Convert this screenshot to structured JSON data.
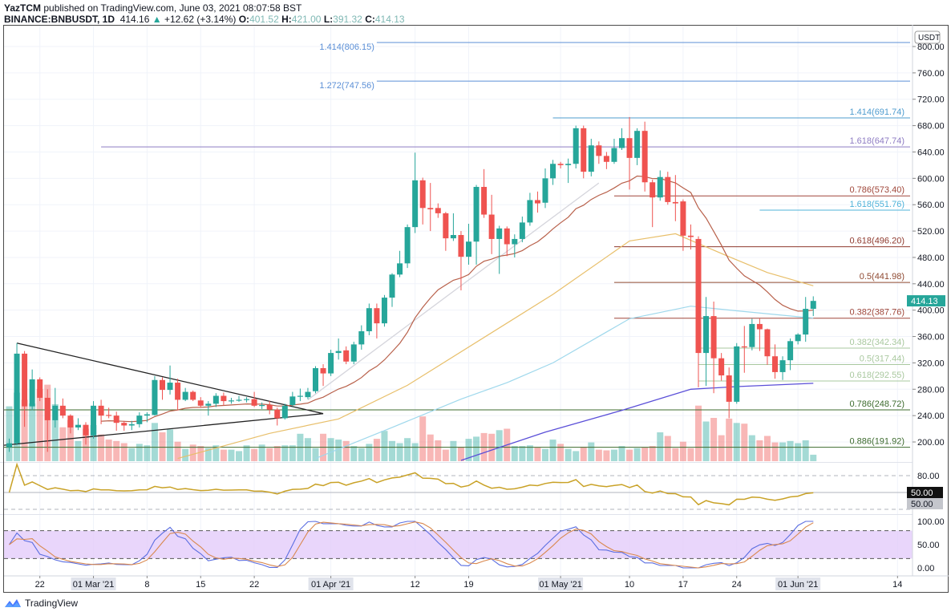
{
  "header": {
    "author": "YazTCM",
    "published": "published on TradingView.com, June 03, 2021 08:07:58 BST",
    "symbol": "BINANCE:BNBUSDT, 1D",
    "last": "414.16",
    "change": "+12.62 (+3.14%)",
    "o_label": "O:",
    "o": "401.52",
    "h_label": "H:",
    "h": "421.00",
    "l_label": "L:",
    "l": "391.32",
    "c_label": "C:",
    "c": "414.13"
  },
  "footer": {
    "brand": "TradingView"
  },
  "colors": {
    "up": "#26a69a",
    "down": "#ef5350",
    "ema20": "#b8604a",
    "ma50": "#e8bf6a",
    "ma100": "#9fd8ec",
    "ma200": "#5a4fd8",
    "rsi": "#c9a227",
    "stoch_k": "#5b6ee1",
    "stoch_d": "#d9884e",
    "band": "#e4ccfa"
  },
  "chart_data": {
    "type": "candlestick",
    "title": "BINANCE:BNBUSDT, 1D",
    "currency": "USDT",
    "start_date": "2021-02-18",
    "ylim": [
      180,
      830
    ],
    "y_ticks": [
      "800.00",
      "760.00",
      "720.00",
      "680.00",
      "640.00",
      "600.00",
      "560.00",
      "520.00",
      "480.00",
      "440.00",
      "400.00",
      "360.00",
      "320.00",
      "280.00",
      "240.00",
      "200.00"
    ],
    "last_price": "414.13",
    "x_ticks": [
      {
        "label": "22",
        "index": 4,
        "boxed": false
      },
      {
        "label": "01 Mar '21",
        "index": 11,
        "boxed": true
      },
      {
        "label": "8",
        "index": 18,
        "boxed": false
      },
      {
        "label": "15",
        "index": 25,
        "boxed": false
      },
      {
        "label": "22",
        "index": 32,
        "boxed": false
      },
      {
        "label": "01 Apr '21",
        "index": 42,
        "boxed": true
      },
      {
        "label": "12",
        "index": 53,
        "boxed": false
      },
      {
        "label": "19",
        "index": 60,
        "boxed": false
      },
      {
        "label": "01 May '21",
        "index": 72,
        "boxed": true
      },
      {
        "label": "10",
        "index": 81,
        "boxed": false
      },
      {
        "label": "17",
        "index": 88,
        "boxed": false
      },
      {
        "label": "24",
        "index": 95,
        "boxed": false
      },
      {
        "label": "01 Jun '21",
        "index": 103,
        "boxed": true
      },
      {
        "label": "14",
        "index": 116,
        "boxed": false
      }
    ],
    "ohlc": [
      [
        192,
        205,
        185,
        198
      ],
      [
        198,
        350,
        195,
        334
      ],
      [
        334,
        338,
        223,
        254
      ],
      [
        254,
        310,
        248,
        295
      ],
      [
        295,
        298,
        262,
        267
      ],
      [
        267,
        280,
        185,
        233
      ],
      [
        233,
        282,
        222,
        255
      ],
      [
        255,
        266,
        236,
        240
      ],
      [
        240,
        242,
        213,
        222
      ],
      [
        222,
        236,
        218,
        226
      ],
      [
        226,
        230,
        196,
        210
      ],
      [
        210,
        262,
        205,
        255
      ],
      [
        255,
        264,
        227,
        240
      ],
      [
        241,
        252,
        236,
        240
      ],
      [
        240,
        246,
        217,
        229
      ],
      [
        229,
        232,
        217,
        225
      ],
      [
        225,
        232,
        218,
        227
      ],
      [
        227,
        245,
        222,
        240
      ],
      [
        240,
        245,
        230,
        242
      ],
      [
        241,
        300,
        240,
        294
      ],
      [
        294,
        298,
        264,
        279
      ],
      [
        279,
        316,
        272,
        290
      ],
      [
        290,
        296,
        248,
        264
      ],
      [
        264,
        282,
        262,
        276
      ],
      [
        276,
        278,
        262,
        264
      ],
      [
        263,
        268,
        252,
        255
      ],
      [
        255,
        262,
        240,
        258
      ],
      [
        258,
        274,
        253,
        270
      ],
      [
        270,
        275,
        255,
        262
      ],
      [
        262,
        267,
        258,
        263
      ],
      [
        263,
        270,
        261,
        264
      ],
      [
        264,
        268,
        260,
        265
      ],
      [
        265,
        276,
        253,
        255
      ],
      [
        255,
        260,
        250,
        256
      ],
      [
        256,
        262,
        242,
        249
      ],
      [
        249,
        252,
        225,
        236
      ],
      [
        236,
        258,
        234,
        255
      ],
      [
        256,
        276,
        254,
        269
      ],
      [
        269,
        281,
        262,
        270
      ],
      [
        268,
        282,
        265,
        276
      ],
      [
        277,
        315,
        274,
        312
      ],
      [
        312,
        318,
        285,
        304
      ],
      [
        304,
        340,
        300,
        335
      ],
      [
        335,
        357,
        325,
        338
      ],
      [
        339,
        345,
        318,
        322
      ],
      [
        322,
        352,
        318,
        348
      ],
      [
        348,
        377,
        340,
        368
      ],
      [
        368,
        410,
        362,
        403
      ],
      [
        403,
        410,
        357,
        380
      ],
      [
        380,
        423,
        375,
        419
      ],
      [
        419,
        456,
        405,
        454
      ],
      [
        454,
        490,
        450,
        471
      ],
      [
        471,
        530,
        464,
        526
      ],
      [
        526,
        639,
        517,
        597
      ],
      [
        597,
        601,
        530,
        555
      ],
      [
        555,
        593,
        520,
        553
      ],
      [
        555,
        562,
        540,
        547
      ],
      [
        547,
        549,
        490,
        509
      ],
      [
        509,
        547,
        505,
        514
      ],
      [
        514,
        520,
        430,
        481
      ],
      [
        481,
        531,
        469,
        504
      ],
      [
        504,
        590,
        469,
        587
      ],
      [
        587,
        614,
        540,
        545
      ],
      [
        545,
        575,
        485,
        508
      ],
      [
        508,
        528,
        455,
        524
      ],
      [
        524,
        527,
        482,
        500
      ],
      [
        500,
        515,
        480,
        508
      ],
      [
        508,
        542,
        503,
        533
      ],
      [
        533,
        578,
        528,
        567
      ],
      [
        567,
        580,
        548,
        562
      ],
      [
        563,
        615,
        555,
        600
      ],
      [
        600,
        628,
        590,
        622
      ],
      [
        622,
        625,
        615,
        620
      ],
      [
        620,
        630,
        593,
        622
      ],
      [
        622,
        680,
        615,
        676
      ],
      [
        676,
        680,
        600,
        610
      ],
      [
        610,
        660,
        603,
        650
      ],
      [
        650,
        656,
        622,
        634
      ],
      [
        634,
        640,
        614,
        625
      ],
      [
        625,
        660,
        622,
        646
      ],
      [
        646,
        676,
        643,
        661
      ],
      [
        661,
        693,
        583,
        631
      ],
      [
        631,
        676,
        620,
        672
      ],
      [
        672,
        686,
        580,
        594
      ],
      [
        594,
        598,
        526,
        571
      ],
      [
        571,
        612,
        566,
        602
      ],
      [
        602,
        610,
        560,
        564
      ],
      [
        564,
        605,
        535,
        562
      ],
      [
        565,
        568,
        490,
        513
      ],
      [
        513,
        530,
        492,
        511
      ],
      [
        508,
        512,
        283,
        335
      ],
      [
        335,
        420,
        285,
        391
      ],
      [
        391,
        413,
        274,
        327
      ],
      [
        327,
        335,
        293,
        301
      ],
      [
        301,
        313,
        236,
        261
      ],
      [
        261,
        350,
        258,
        345
      ],
      [
        345,
        376,
        305,
        344
      ],
      [
        344,
        387,
        339,
        379
      ],
      [
        379,
        387,
        338,
        371
      ],
      [
        371,
        372,
        317,
        330
      ],
      [
        330,
        348,
        296,
        306
      ],
      [
        306,
        330,
        294,
        324
      ],
      [
        324,
        357,
        309,
        353
      ],
      [
        353,
        365,
        348,
        363
      ],
      [
        363,
        420,
        352,
        402
      ],
      [
        402,
        421,
        391,
        414
      ]
    ],
    "volume_relative": [
      76,
      95,
      85,
      80,
      100,
      106,
      79,
      47,
      57,
      28,
      45,
      50,
      37,
      30,
      28,
      25,
      18,
      24,
      22,
      53,
      40,
      44,
      27,
      17,
      23,
      21,
      18,
      22,
      16,
      16,
      14,
      22,
      17,
      23,
      18,
      21,
      22,
      22,
      38,
      32,
      18,
      38,
      32,
      30,
      28,
      21,
      18,
      24,
      31,
      42,
      28,
      25,
      32,
      25,
      62,
      37,
      29,
      16,
      28,
      20,
      31,
      34,
      39,
      38,
      43,
      45,
      21,
      21,
      22,
      19,
      17,
      30,
      24,
      17,
      14,
      20,
      26,
      16,
      15,
      16,
      21,
      16,
      18,
      19,
      21,
      40,
      35,
      18,
      27,
      18,
      77,
      55,
      60,
      36,
      59,
      53,
      52,
      36,
      29,
      35,
      26,
      26,
      28,
      25,
      29,
      9
    ],
    "ema20_period": 20,
    "moving_averages": {
      "ma50": [
        [
          22,
          175
        ],
        [
          34,
          213
        ],
        [
          43,
          235
        ],
        [
          52,
          286
        ],
        [
          71,
          424
        ],
        [
          81,
          505
        ],
        [
          87,
          516
        ],
        [
          94,
          481
        ],
        [
          99,
          457
        ],
        [
          105,
          437
        ]
      ],
      "ma100": [
        [
          40,
          175
        ],
        [
          50,
          222
        ],
        [
          59,
          265
        ],
        [
          65,
          290
        ],
        [
          71,
          320
        ],
        [
          81,
          387
        ],
        [
          89,
          406
        ],
        [
          95,
          399
        ],
        [
          103,
          390
        ],
        [
          105,
          388
        ]
      ],
      "ma200": [
        [
          59,
          172
        ],
        [
          70,
          215
        ],
        [
          77,
          238
        ],
        [
          80,
          248
        ],
        [
          89,
          280
        ],
        [
          95,
          284
        ],
        [
          105,
          289
        ]
      ]
    },
    "trendlines": [
      {
        "name": "triangle-upper",
        "from": [
          1,
          350
        ],
        "to": [
          41,
          243
        ],
        "color": "#222222"
      },
      {
        "name": "triangle-lower",
        "from": [
          -0.7,
          195
        ],
        "to": [
          41,
          243
        ],
        "color": "#222222"
      },
      {
        "name": "support-trend",
        "from": [
          39,
          264
        ],
        "to": [
          77,
          593
        ],
        "color": "#d5d5dc"
      }
    ],
    "fib_levels": [
      {
        "label": "1.414(806.15)",
        "value": 806.15,
        "from": 48,
        "color": "#5b8fd6",
        "label_position": "left"
      },
      {
        "label": "1.272(747.56)",
        "value": 747.56,
        "from": 48,
        "color": "#5b8fd6",
        "label_position": "left"
      },
      {
        "label": "1.414(691.74)",
        "value": 691.74,
        "from": 71,
        "color": "#4f9ccf",
        "label_position": "right"
      },
      {
        "label": "1.618(647.74)",
        "value": 647.74,
        "from": 12,
        "color": "#8e7cc3",
        "label_position": "right"
      },
      {
        "label": "0.786(573.40)",
        "value": 573.4,
        "from": 79,
        "color": "#a0473a",
        "label_position": "right"
      },
      {
        "label": "1.618(551.76)",
        "value": 551.76,
        "from": 98,
        "color": "#4fb3d9",
        "label_position": "right"
      },
      {
        "label": "0.618(496.20)",
        "value": 496.2,
        "from": 79,
        "color": "#8f3a2e",
        "label_position": "right"
      },
      {
        "label": "0.5(441.98)",
        "value": 441.98,
        "from": 79,
        "color": "#8f4a32",
        "label_position": "right"
      },
      {
        "label": "0.382(387.76)",
        "value": 387.76,
        "from": 79,
        "color": "#a0473a",
        "label_position": "right"
      },
      {
        "label": "0.382(342.34)",
        "value": 342.34,
        "from": 90,
        "color": "#a9c89f",
        "label_position": "right"
      },
      {
        "label": "0.5(317.44)",
        "value": 317.44,
        "from": 90,
        "color": "#a9c89f",
        "label_position": "right"
      },
      {
        "label": "0.618(292.55)",
        "value": 292.55,
        "from": 90,
        "color": "#a9c89f",
        "label_position": "right"
      },
      {
        "label": "0.786(248.72)",
        "value": 248.72,
        "from": -1,
        "color": "#3d6b2e",
        "label_position": "right"
      },
      {
        "label": "0.886(191.92)",
        "value": 191.92,
        "from": -1,
        "color": "#3d6b2e",
        "label_position": "right"
      }
    ],
    "rsi": {
      "period": 14,
      "ticks": [
        "80.00"
      ],
      "labels": [
        {
          "text": "50.00",
          "style": "dark"
        },
        {
          "text": "50.00",
          "style": "gray"
        }
      ]
    },
    "stoch_rsi": {
      "ticks": [
        "100.00",
        "50.00",
        "0.00"
      ],
      "upper": 80,
      "lower": 20
    }
  }
}
